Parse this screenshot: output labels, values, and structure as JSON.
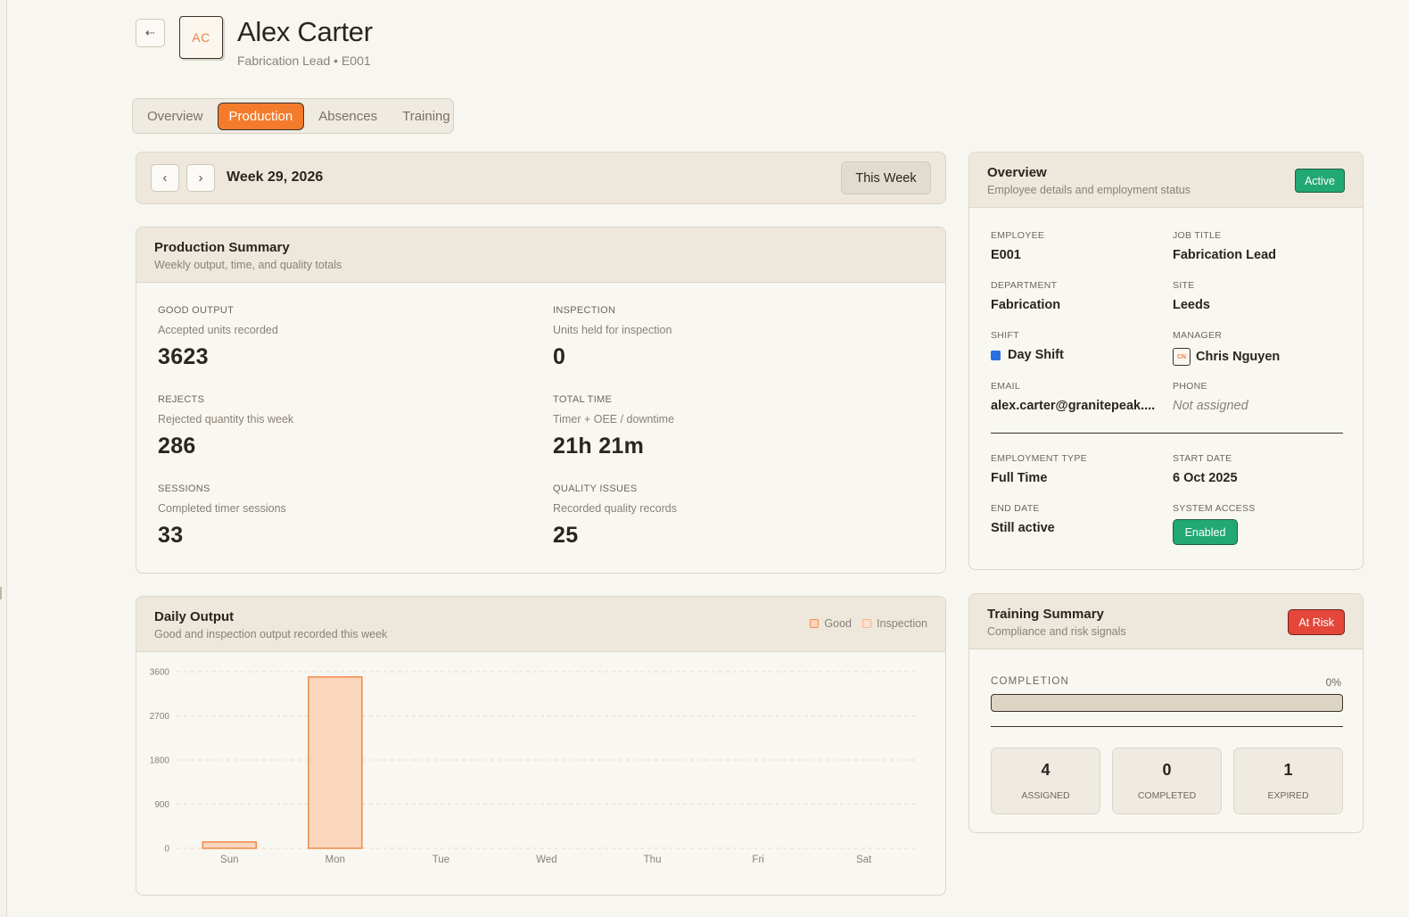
{
  "header": {
    "avatar_initials": "AC",
    "name": "Alex Carter",
    "subtitle": "Fabrication Lead • E001"
  },
  "icons": {
    "back": "back-arrow-icon",
    "prev": "chevron-left-icon",
    "next": "chevron-right-icon"
  },
  "tabs": [
    {
      "label": "Overview",
      "active": false
    },
    {
      "label": "Production",
      "active": true
    },
    {
      "label": "Absences",
      "active": false
    },
    {
      "label": "Training",
      "active": false
    }
  ],
  "week": {
    "label": "Week 29, 2026",
    "this_week_label": "This Week",
    "prev_symbol": "‹",
    "next_symbol": "›",
    "back_symbol": "⇠"
  },
  "production": {
    "title": "Production Summary",
    "subtitle": "Weekly output, time, and quality totals",
    "metrics": [
      {
        "label": "GOOD OUTPUT",
        "desc": "Accepted units recorded",
        "value": "3623"
      },
      {
        "label": "INSPECTION",
        "desc": "Units held for inspection",
        "value": "0"
      },
      {
        "label": "REJECTS",
        "desc": "Rejected quantity this week",
        "value": "286"
      },
      {
        "label": "TOTAL TIME",
        "desc": "Timer + OEE / downtime",
        "value": "21h 21m"
      },
      {
        "label": "SESSIONS",
        "desc": "Completed timer sessions",
        "value": "33"
      },
      {
        "label": "QUALITY ISSUES",
        "desc": "Recorded quality records",
        "value": "25"
      }
    ]
  },
  "daily": {
    "title": "Daily Output",
    "subtitle": "Good and inspection output recorded this week",
    "legend_good": "Good",
    "legend_inspection": "Inspection"
  },
  "chart_data": {
    "type": "bar",
    "categories": [
      "Sun",
      "Mon",
      "Tue",
      "Wed",
      "Thu",
      "Fri",
      "Sat"
    ],
    "series": [
      {
        "name": "Good",
        "values": [
          130,
          3493,
          0,
          0,
          0,
          0,
          0
        ]
      },
      {
        "name": "Inspection",
        "values": [
          0,
          0,
          0,
          0,
          0,
          0,
          0
        ]
      }
    ],
    "yticks": [
      "0",
      "900",
      "1800",
      "2700",
      "3600"
    ],
    "ylim": [
      0,
      3600
    ],
    "grid": true,
    "legend": "top-right",
    "colors": {
      "good_fill": "#fad6bc",
      "good_stroke": "#f08a4b",
      "inspection_fill": "#fbe3d2",
      "inspection_stroke": "#f3b58d"
    }
  },
  "overview": {
    "title": "Overview",
    "subtitle": "Employee details and employment status",
    "status_badge": "Active",
    "fields": {
      "employee_label": "EMPLOYEE",
      "employee": "E001",
      "job_title_label": "JOB TITLE",
      "job_title": "Fabrication Lead",
      "department_label": "DEPARTMENT",
      "department": "Fabrication",
      "site_label": "SITE",
      "site": "Leeds",
      "shift_label": "SHIFT",
      "shift": "Day Shift",
      "manager_label": "MANAGER",
      "manager": "Chris Nguyen",
      "manager_initials": "CN",
      "email_label": "EMAIL",
      "email": "alex.carter@granitepeak....",
      "phone_label": "PHONE",
      "phone": "Not assigned",
      "employment_type_label": "EMPLOYMENT TYPE",
      "employment_type": "Full Time",
      "start_date_label": "START DATE",
      "start_date": "6 Oct 2025",
      "end_date_label": "END DATE",
      "end_date": "Still active",
      "system_access_label": "SYSTEM ACCESS",
      "system_access": "Enabled"
    },
    "shift_color": "#2a6fe0"
  },
  "training": {
    "title": "Training Summary",
    "subtitle": "Compliance and risk signals",
    "risk_badge": "At Risk",
    "completion_label": "COMPLETION",
    "completion_pct": "0%",
    "completion_fraction": 0,
    "stats": [
      {
        "value": "4",
        "label": "ASSIGNED"
      },
      {
        "value": "0",
        "label": "COMPLETED"
      },
      {
        "value": "1",
        "label": "EXPIRED"
      }
    ]
  }
}
